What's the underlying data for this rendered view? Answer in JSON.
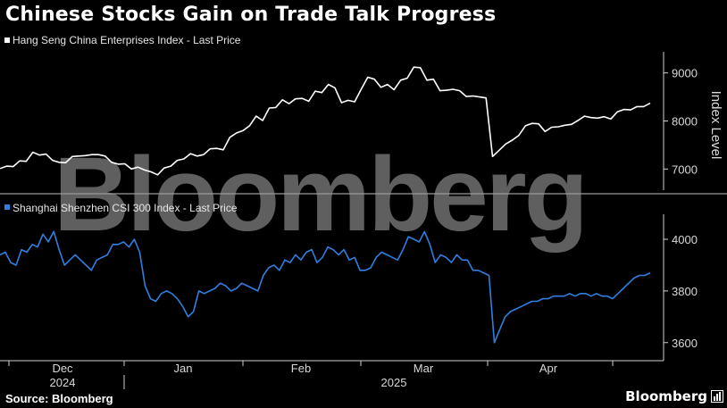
{
  "title": "Chinese Stocks Gain on Trade Talk Progress",
  "source": "Source: Bloomberg",
  "brand": "Bloomberg",
  "watermark": "Bloomberg",
  "colors": {
    "background": "#000000",
    "series_top": "#ffffff",
    "series_bottom": "#2f7fe0",
    "divider": "#9a9a9a"
  },
  "icon": "bar-chart-icon",
  "chart_data": [
    {
      "type": "line",
      "series": [
        {
          "name": "Hang Seng China Enterprises Index - Last Price",
          "values": [
            7010,
            7060,
            7050,
            7170,
            7160,
            7350,
            7290,
            7310,
            7180,
            7140,
            7130,
            7260,
            7270,
            7280,
            7300,
            7300,
            7270,
            7140,
            7100,
            7110,
            7000,
            7040,
            6980,
            6940,
            6880,
            7020,
            7060,
            7180,
            7210,
            7320,
            7270,
            7300,
            7420,
            7430,
            7400,
            7660,
            7750,
            7800,
            7900,
            8100,
            8010,
            8270,
            8280,
            8440,
            8360,
            8460,
            8470,
            8410,
            8620,
            8590,
            8760,
            8690,
            8380,
            8430,
            8400,
            8660,
            8910,
            8870,
            8700,
            8760,
            8650,
            8850,
            8890,
            9120,
            9110,
            8850,
            8870,
            8630,
            8640,
            8660,
            8630,
            8510,
            8520,
            8500,
            8480,
            7260,
            7390,
            7520,
            7600,
            7700,
            7900,
            7950,
            7940,
            7780,
            7870,
            7880,
            7910,
            7930,
            8010,
            8100,
            8070,
            8060,
            8090,
            8040,
            8190,
            8240,
            8230,
            8300,
            8300,
            8370
          ]
        }
      ],
      "ylabel": "Index Level",
      "yticks": [
        7000,
        8000,
        9000
      ],
      "ylim": [
        6560,
        9440
      ]
    },
    {
      "type": "line",
      "series": [
        {
          "name": "Shanghai Shenzhen CSI 300 Index - Last Price",
          "values": [
            3940,
            3950,
            3910,
            3900,
            3960,
            3950,
            3980,
            3970,
            4020,
            3990,
            4030,
            3960,
            3900,
            3920,
            3940,
            3920,
            3900,
            3880,
            3920,
            3930,
            3940,
            3980,
            3980,
            3990,
            3970,
            4000,
            3950,
            3820,
            3770,
            3760,
            3790,
            3800,
            3790,
            3770,
            3740,
            3700,
            3720,
            3800,
            3790,
            3800,
            3810,
            3830,
            3820,
            3800,
            3810,
            3830,
            3820,
            3810,
            3800,
            3860,
            3890,
            3900,
            3880,
            3920,
            3910,
            3940,
            3920,
            3950,
            3960,
            3910,
            3930,
            3970,
            3960,
            3940,
            3960,
            3920,
            3930,
            3880,
            3880,
            3890,
            3930,
            3950,
            3940,
            3930,
            3920,
            3960,
            4010,
            4000,
            3990,
            4030,
            3980,
            3910,
            3940,
            3930,
            3910,
            3940,
            3920,
            3920,
            3880,
            3880,
            3870,
            3860,
            3600,
            3650,
            3700,
            3720,
            3730,
            3740,
            3750,
            3760,
            3760,
            3770,
            3770,
            3780,
            3780,
            3780,
            3790,
            3780,
            3790,
            3790,
            3780,
            3790,
            3780,
            3780,
            3770,
            3790,
            3810,
            3830,
            3850,
            3860,
            3860,
            3870
          ]
        }
      ],
      "yticks": [
        3600,
        3800,
        4000
      ],
      "ylim": [
        3530,
        4090
      ]
    }
  ],
  "x_axis": {
    "months": [
      "Dec",
      "Jan",
      "Feb",
      "Mar",
      "Apr"
    ],
    "years": [
      "2024",
      "2025"
    ]
  }
}
